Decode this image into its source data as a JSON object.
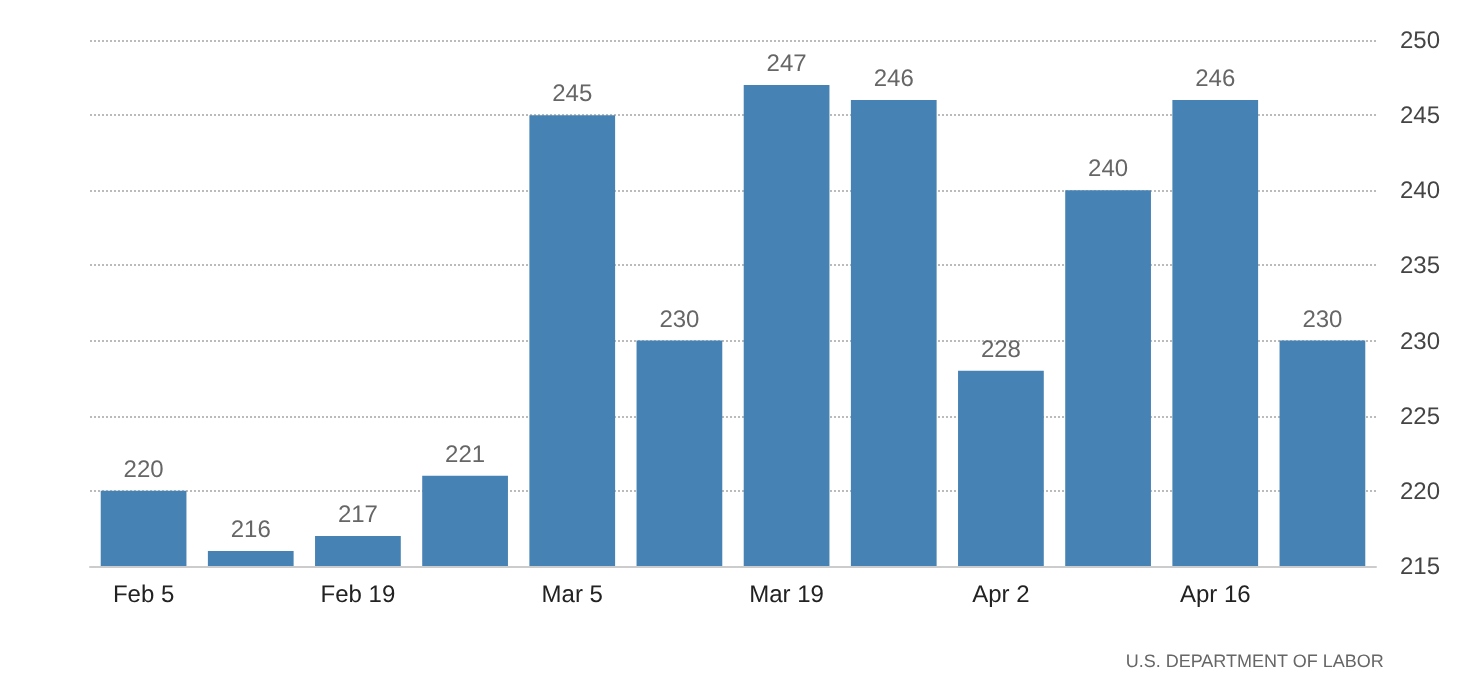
{
  "chart_data": {
    "type": "bar",
    "categories": [
      "Feb 5",
      null,
      "Feb 19",
      null,
      "Mar 5",
      null,
      "Mar 19",
      null,
      "Apr 2",
      null,
      "Apr 16",
      null
    ],
    "values": [
      220,
      216,
      217,
      221,
      245,
      230,
      247,
      246,
      228,
      240,
      246,
      230
    ],
    "color": "#4682b4",
    "ylim": [
      215,
      250
    ],
    "yticks": [
      215,
      220,
      225,
      230,
      235,
      240,
      245,
      250
    ],
    "grid": "y",
    "data_labels": true,
    "annotations": [
      "U.S. DEPARTMENT OF LABOR"
    ]
  }
}
